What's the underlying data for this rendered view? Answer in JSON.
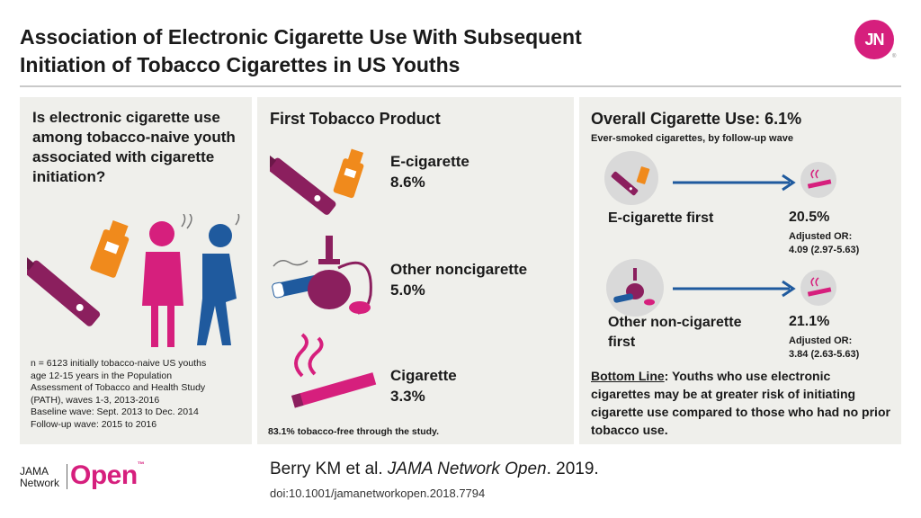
{
  "title": {
    "line1": "Association of Electronic Cigarette Use With Subsequent",
    "line2": "Initiation of Tobacco Cigarettes in US Youths"
  },
  "logo": {
    "text": "JN",
    "mark": "®"
  },
  "left_panel": {
    "question": "Is electronic cigarette use among tobacco-naive youth associated with cigarette initiation?",
    "notes": [
      "n = 6123 initially tobacco-naive US youths",
      "age 12-15 years in the Population",
      "Assessment of Tobacco and Health Study",
      "(PATH),  waves 1-3, 2013-2016",
      "Baseline wave: Sept. 2013 to Dec. 2014",
      "Follow-up wave: 2015 to 2016"
    ]
  },
  "middle_panel": {
    "heading": "First Tobacco Product",
    "products": [
      {
        "name": "E-cigarette",
        "percent": "8.6%"
      },
      {
        "name": "Other noncigarette",
        "percent": "5.0%"
      },
      {
        "name": "Cigarette",
        "percent": "3.3%"
      }
    ],
    "footnote": "83.1% tobacco-free through the study."
  },
  "right_panel": {
    "heading": "Overall Cigarette Use: 6.1%",
    "subheading": "Ever-smoked cigarettes, by follow-up wave",
    "rows": [
      {
        "label_line1": "E-cigarette first",
        "label_line2": "",
        "percent": "20.5%",
        "or_label": "Adjusted OR:",
        "or_value": "4.09 (2.97-5.63)"
      },
      {
        "label_line1": "Other non-cigarette",
        "label_line2": "first",
        "percent": "21.1%",
        "or_label": "Adjusted OR:",
        "or_value": "3.84 (2.63-5.63)"
      }
    ],
    "bottom_line_label": "Bottom Line",
    "bottom_line_text": ": Youths who use electronic cigarettes may be at greater risk of initiating cigarette use compared to those who had no prior tobacco use."
  },
  "footer": {
    "brand_top": "JAMA",
    "brand_bottom": "Network",
    "brand_open": "Open",
    "brand_mark": "™",
    "citation_authors": "Berry KM et al. ",
    "citation_journal": "JAMA Network Open",
    "citation_year": ". 2019.",
    "doi": "doi:10.1001/jamanetworkopen.2018.7794"
  },
  "colors": {
    "magenta": "#d61f7d",
    "purple": "#8b1f5e",
    "orange": "#f08a1c",
    "blue": "#1f5a9e",
    "panel": "#efefeb"
  }
}
